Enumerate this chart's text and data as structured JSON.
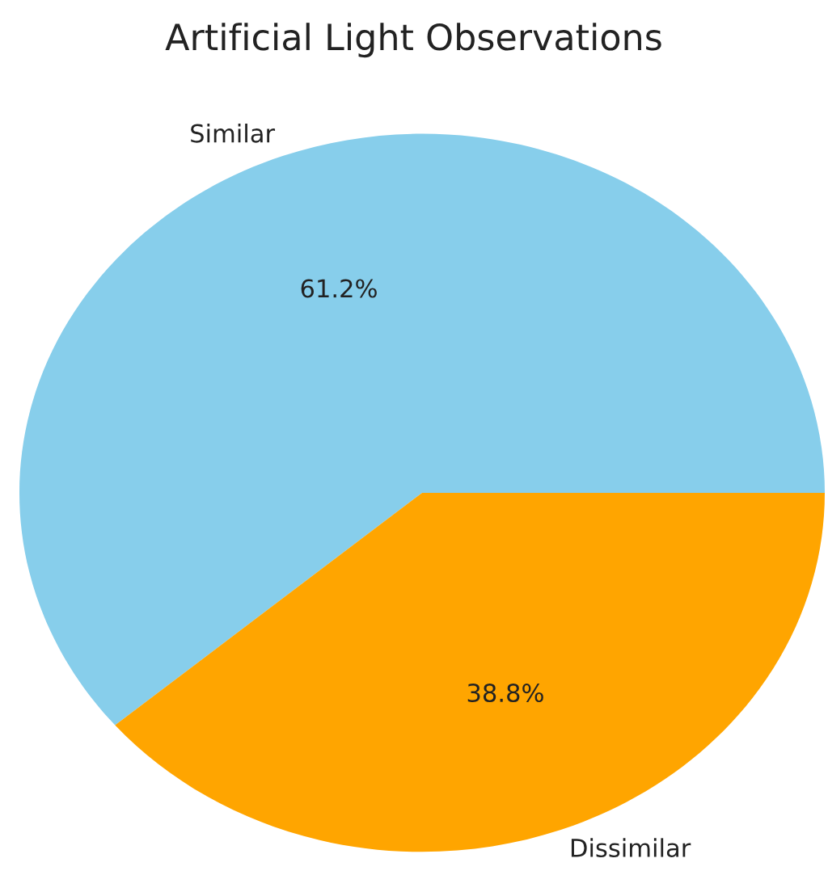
{
  "chart_data": {
    "type": "pie",
    "title": "Artificial Light Observations",
    "categories": [
      "Similar",
      "Dissimilar"
    ],
    "values": [
      61.2,
      38.8
    ],
    "colors": [
      "#87ceeb",
      "#ffa500"
    ],
    "value_labels": [
      "61.2%",
      "38.8%"
    ]
  }
}
